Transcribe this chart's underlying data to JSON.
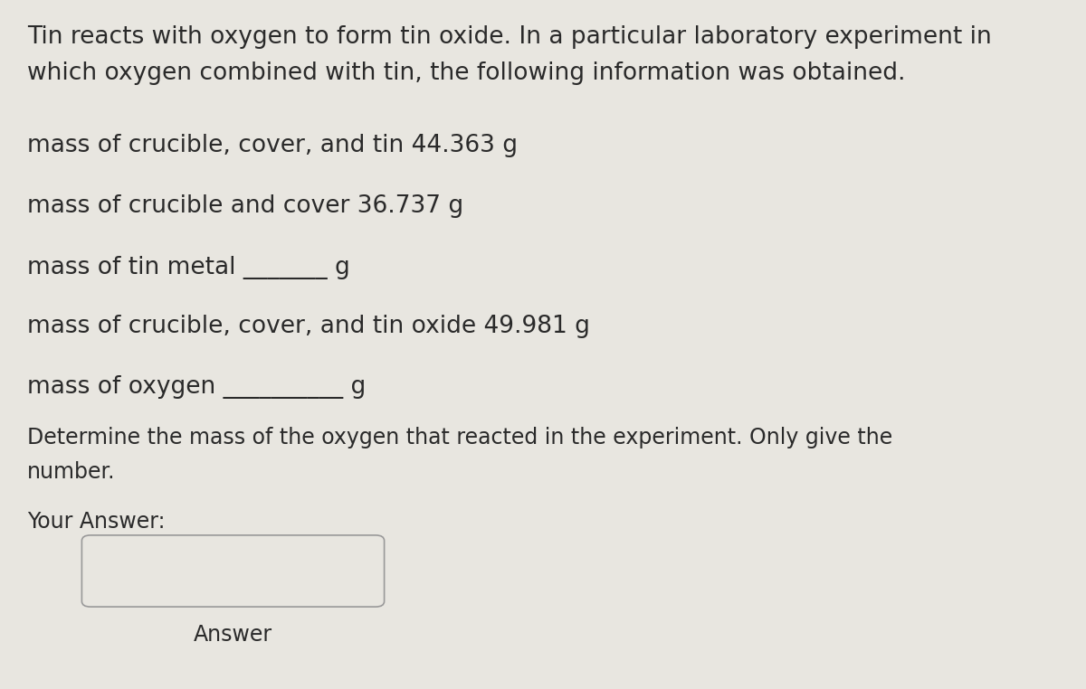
{
  "background_color": "#e8e6e0",
  "text_color": "#2a2a2a",
  "intro_line1": "Tin reacts with oxygen to form tin oxide. In a particular laboratory experiment in",
  "intro_line2": "which oxygen combined with tin, the following information was obtained.",
  "line1": "mass of crucible, cover, and tin 44.363 g",
  "line2": "mass of crucible and cover 36.737 g",
  "line3": "mass of tin metal _______ g",
  "line4": "mass of crucible, cover, and tin oxide 49.981 g",
  "line5": "mass of oxygen __________ g",
  "question_line1": "Determine the mass of the oxygen that reacted in the experiment. Only give the",
  "question_line2": "number.",
  "your_answer_label": "Your Answer:",
  "answer_label": "Answer",
  "font_size": 19,
  "font_size_small": 17,
  "box_fill": "#e8e6e0",
  "box_edge": "#999999"
}
